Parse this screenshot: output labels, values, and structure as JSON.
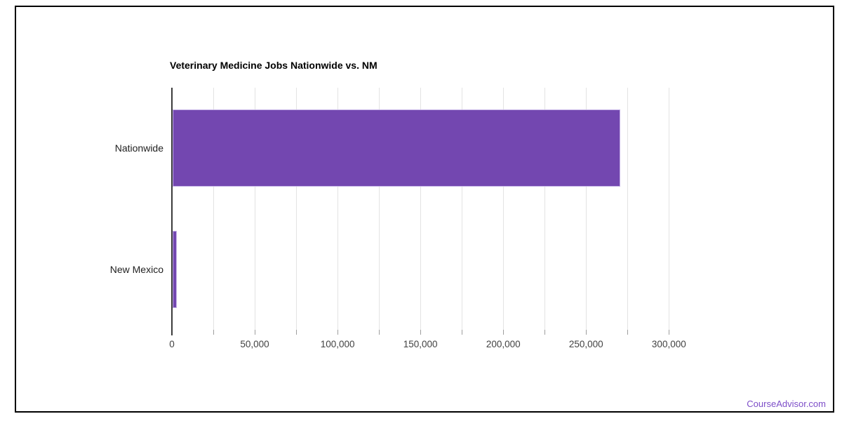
{
  "page": {
    "footer_link": "CourseAdvisor.com"
  },
  "chart_data": {
    "type": "bar",
    "orientation": "horizontal",
    "title": "Veterinary Medicine Jobs Nationwide vs. NM",
    "categories": [
      "Nationwide",
      "New Mexico"
    ],
    "values": [
      270000,
      2500
    ],
    "xlabel": "",
    "ylabel": "",
    "xlim": [
      0,
      324000
    ],
    "gridline_step": 25000,
    "gridline_max": 300000,
    "xtick_label_step": 50000,
    "xtick_labels": [
      "0",
      "50,000",
      "100,000",
      "150,000",
      "200,000",
      "250,000",
      "300,000"
    ],
    "legend_position": "none",
    "grid": true,
    "colors": {
      "bar_fill": "#7347b0",
      "bar_stroke": "#c3b0e6",
      "gridline": "#e3e3e3",
      "axis_line": "#3c3c3c",
      "tick_mark": "#9e9e9e",
      "title_text": "#000000",
      "category_text": "#212121",
      "tick_text": "#424242",
      "link_text": "#7d4ec8"
    }
  }
}
